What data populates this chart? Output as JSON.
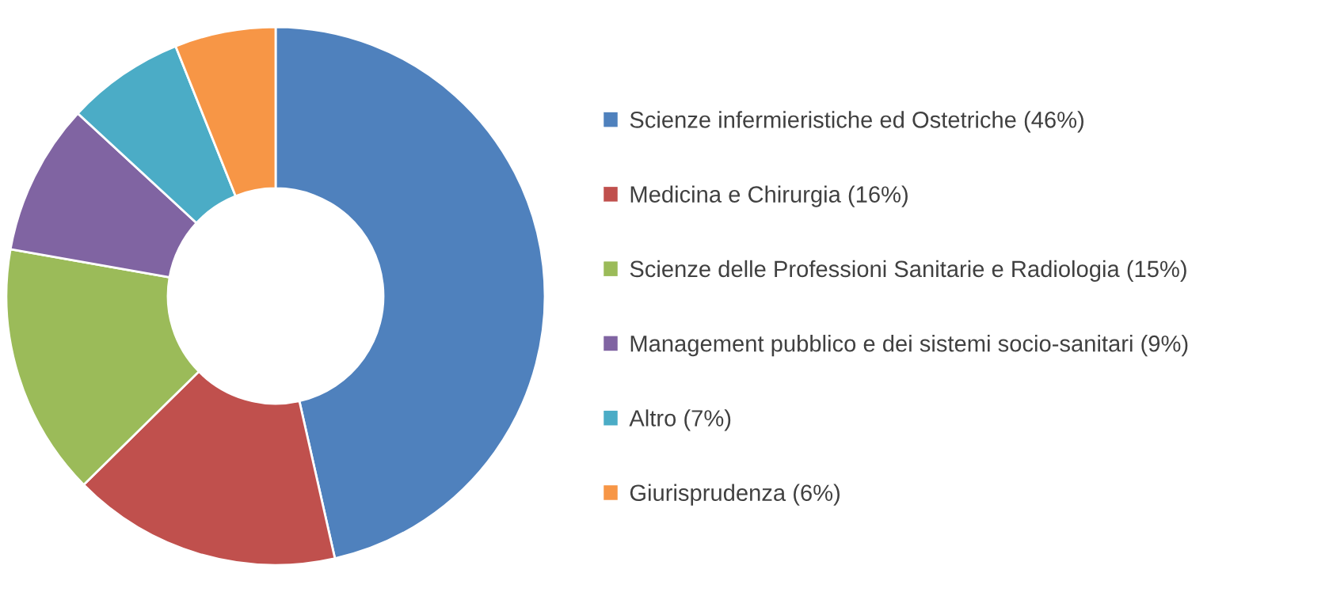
{
  "chart_data": {
    "type": "donut",
    "categories": [
      "Scienze infermieristiche ed Ostetriche (46%)",
      "Medicina e Chirurgia (16%)",
      "Scienze delle Professioni Sanitarie e Radiologia (15%)",
      "Management pubblico e dei sistemi socio-sanitari (9%)",
      "Altro (7%)",
      "Giurisprudenza (6%)"
    ],
    "values": [
      46,
      16,
      15,
      9,
      7,
      6
    ],
    "colors": [
      "#4f81bd",
      "#c0504d",
      "#9bbb59",
      "#8064a2",
      "#4bacc6",
      "#f79646"
    ],
    "legend": "right"
  }
}
